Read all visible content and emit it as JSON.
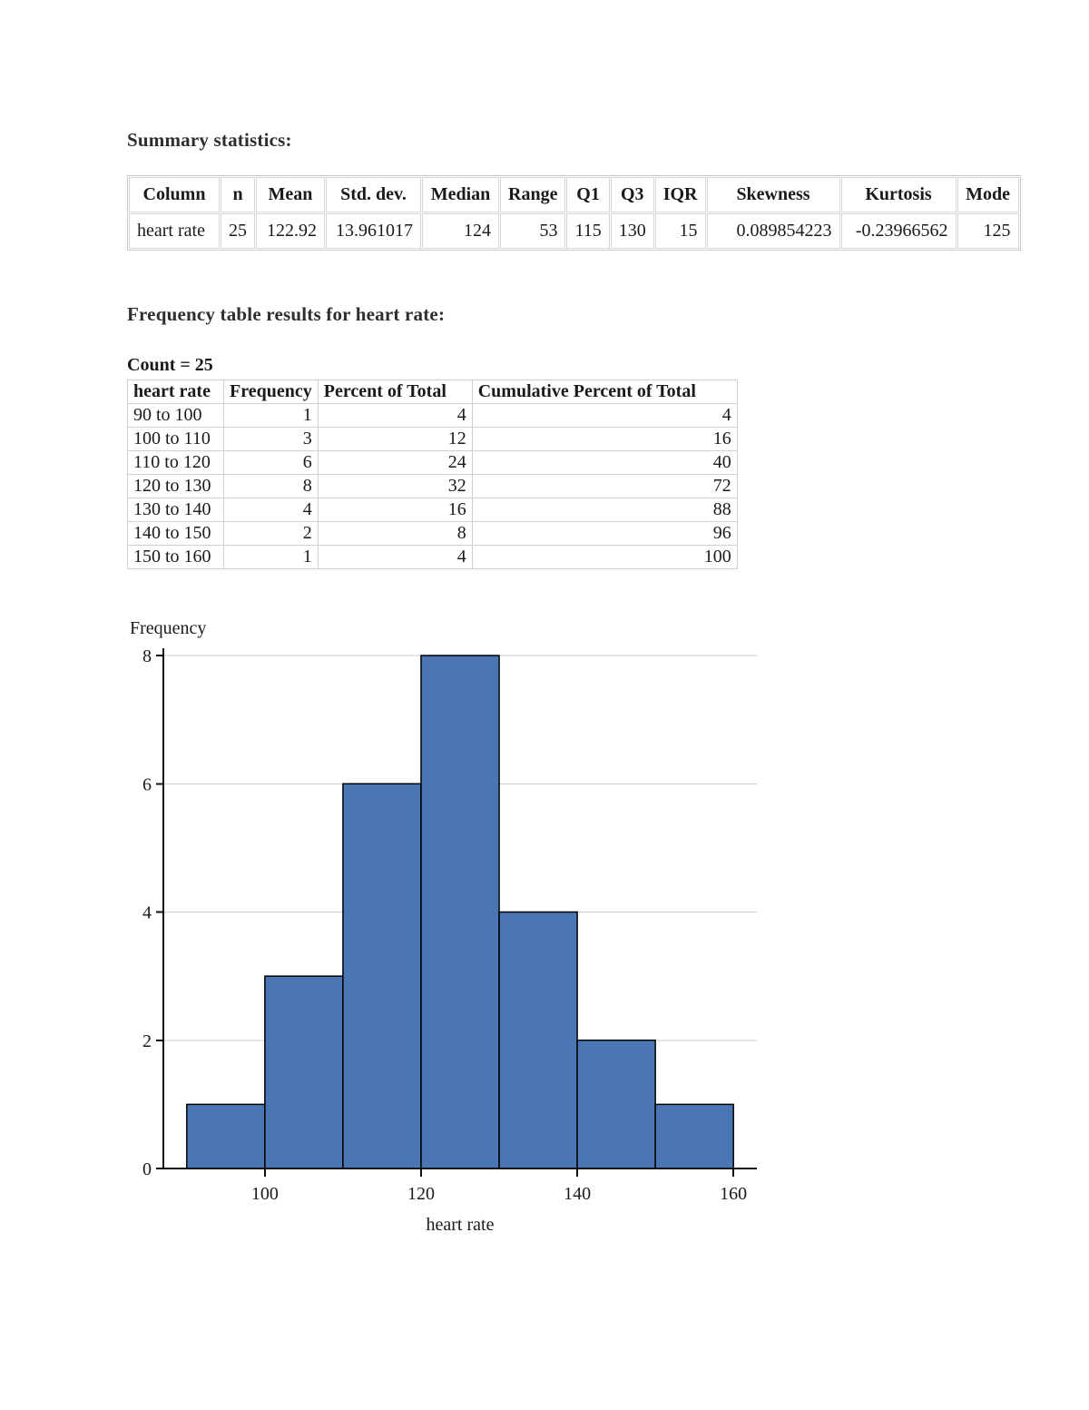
{
  "headings": {
    "summary": "Summary statistics:",
    "frequency": "Frequency table results for heart rate:"
  },
  "summary_table": {
    "columns": [
      "Column",
      "n",
      "Mean",
      "Std. dev.",
      "Median",
      "Range",
      "Q1",
      "Q3",
      "IQR",
      "Skewness",
      "Kurtosis",
      "Mode"
    ],
    "rows": [
      [
        "heart rate",
        "25",
        "122.92",
        "13.961017",
        "124",
        "53",
        "115",
        "130",
        "15",
        "0.089854223",
        "-0.23966562",
        "125"
      ]
    ]
  },
  "frequency_table": {
    "count_label": "Count = 25",
    "columns": [
      "heart rate",
      "Frequency",
      "Percent of Total",
      "Cumulative Percent of Total"
    ],
    "rows": [
      [
        "90 to 100",
        "1",
        "4",
        "4"
      ],
      [
        "100 to 110",
        "3",
        "12",
        "16"
      ],
      [
        "110 to 120",
        "6",
        "24",
        "40"
      ],
      [
        "120 to 130",
        "8",
        "32",
        "72"
      ],
      [
        "130 to 140",
        "4",
        "16",
        "88"
      ],
      [
        "140 to 150",
        "2",
        "8",
        "96"
      ],
      [
        "150 to 160",
        "1",
        "4",
        "100"
      ]
    ]
  },
  "chart_data": {
    "type": "bar",
    "variant": "histogram",
    "title": "",
    "xlabel": "heart rate",
    "ylabel": "Frequency",
    "bin_edges": [
      90,
      100,
      110,
      120,
      130,
      140,
      150,
      160
    ],
    "categories": [
      "90 to 100",
      "100 to 110",
      "110 to 120",
      "120 to 130",
      "130 to 140",
      "140 to 150",
      "150 to 160"
    ],
    "values": [
      1,
      3,
      6,
      8,
      4,
      2,
      1
    ],
    "xlim": [
      87,
      163
    ],
    "ylim": [
      0,
      8
    ],
    "xticks": [
      100,
      120,
      140,
      160
    ],
    "yticks": [
      0,
      2,
      4,
      6,
      8
    ],
    "grid": true,
    "legend": "none",
    "colors": {
      "bar_fill": "#4a77b4",
      "bar_border": "#000000",
      "grid": "#cccccc",
      "axis": "#111111"
    }
  }
}
